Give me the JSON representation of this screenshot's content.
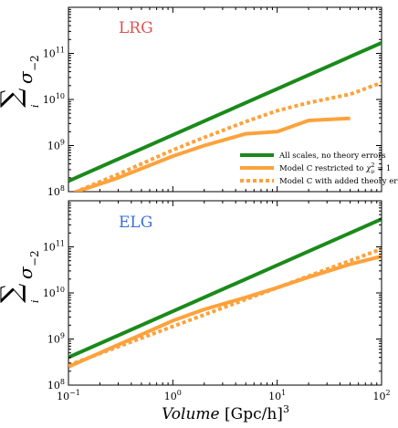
{
  "chart_data": [
    {
      "type": "line",
      "panel_label": "LRG",
      "panel_label_color": "#d9534f",
      "xscale": "log",
      "yscale": "log",
      "xlim": [
        0.1,
        100
      ],
      "ylim": [
        100000000.0,
        1000000000000.0
      ],
      "x_tick_labels": [
        "",
        "",
        "",
        ""
      ],
      "y_ticks": [
        {
          "base": "10",
          "exp": "8"
        },
        {
          "base": "10",
          "exp": "9"
        },
        {
          "base": "10",
          "exp": "10"
        },
        {
          "base": "10",
          "exp": "11"
        }
      ],
      "ylabel": "∑ σ",
      "ylabel_sub": "i",
      "ylabel_sup": "−2",
      "legend_position": "lower-right",
      "series": [
        {
          "name": "All scales, no theory errors",
          "color": "#1a8a1a",
          "style": "solid",
          "x": [
            0.1,
            100
          ],
          "y": [
            170000000.0,
            170000000000.0
          ]
        },
        {
          "name": "Model C restricted to χ²ᵥ = 1",
          "color": "#fda23c",
          "style": "solid",
          "x": [
            0.12,
            0.3,
            1,
            2,
            5,
            10,
            20,
            50
          ],
          "y": [
            100000000.0,
            200000000.0,
            590000000.0,
            1000000000.0,
            1800000000.0,
            2000000000.0,
            3500000000.0,
            3900000000.0
          ]
        },
        {
          "name": "Model C with added theory errors",
          "color": "#fda23c",
          "style": "dotted",
          "x": [
            0.1,
            0.3,
            1,
            2,
            5,
            10,
            20,
            50,
            100
          ],
          "y": [
            85000000.0,
            240000000.0,
            800000000.0,
            1500000000.0,
            3300000000.0,
            5700000000.0,
            8500000000.0,
            13000000000.0,
            23000000000.0
          ]
        }
      ]
    },
    {
      "type": "line",
      "panel_label": "ELG",
      "panel_label_color": "#3a6fd8",
      "xscale": "log",
      "yscale": "log",
      "xlim": [
        0.1,
        100
      ],
      "ylim": [
        100000000.0,
        1000000000000.0
      ],
      "x_tick_labels": [
        {
          "base": "10",
          "exp": "−1"
        },
        {
          "base": "10",
          "exp": "0"
        },
        {
          "base": "10",
          "exp": "1"
        },
        {
          "base": "10",
          "exp": "2"
        }
      ],
      "y_ticks": [
        {
          "base": "10",
          "exp": "8"
        },
        {
          "base": "10",
          "exp": "9"
        },
        {
          "base": "10",
          "exp": "10"
        },
        {
          "base": "10",
          "exp": "11"
        }
      ],
      "ylabel": "∑ σ",
      "ylabel_sub": "i",
      "ylabel_sup": "−2",
      "xlabel": "Volume [Gpc/h]³",
      "series": [
        {
          "name": "All scales, no theory errors",
          "color": "#1a8a1a",
          "style": "solid",
          "x": [
            0.1,
            100
          ],
          "y": [
            400000000.0,
            400000000000.0
          ]
        },
        {
          "name": "Model C restricted to χ²ᵥ = 1",
          "color": "#fda23c",
          "style": "solid",
          "x": [
            0.1,
            1,
            2,
            5,
            10,
            20,
            50,
            100
          ],
          "y": [
            250000000.0,
            2500000000.0,
            4400000000.0,
            8000000000.0,
            13000000000.0,
            22000000000.0,
            42000000000.0,
            62000000000.0
          ]
        },
        {
          "name": "Model C with added theory errors",
          "color": "#fda23c",
          "style": "dotted",
          "x": [
            0.1,
            100
          ],
          "y": [
            270000000.0,
            90000000000.0
          ]
        }
      ]
    }
  ],
  "legend": {
    "items": [
      {
        "label": "All scales, no theory errors",
        "color": "#1a8a1a",
        "style": "solid"
      },
      {
        "label_pre": "Model C restricted to ",
        "label_math": "χ",
        "label_sup": "2",
        "label_sub": "ν",
        "label_post": " = 1",
        "color": "#fda23c",
        "style": "solid"
      },
      {
        "label": "Model C with added theory errors",
        "color": "#fda23c",
        "style": "dotted"
      }
    ]
  },
  "xlabel_main": "Volume",
  "xlabel_unit": "[Gpc/h]",
  "xlabel_sup": "3"
}
